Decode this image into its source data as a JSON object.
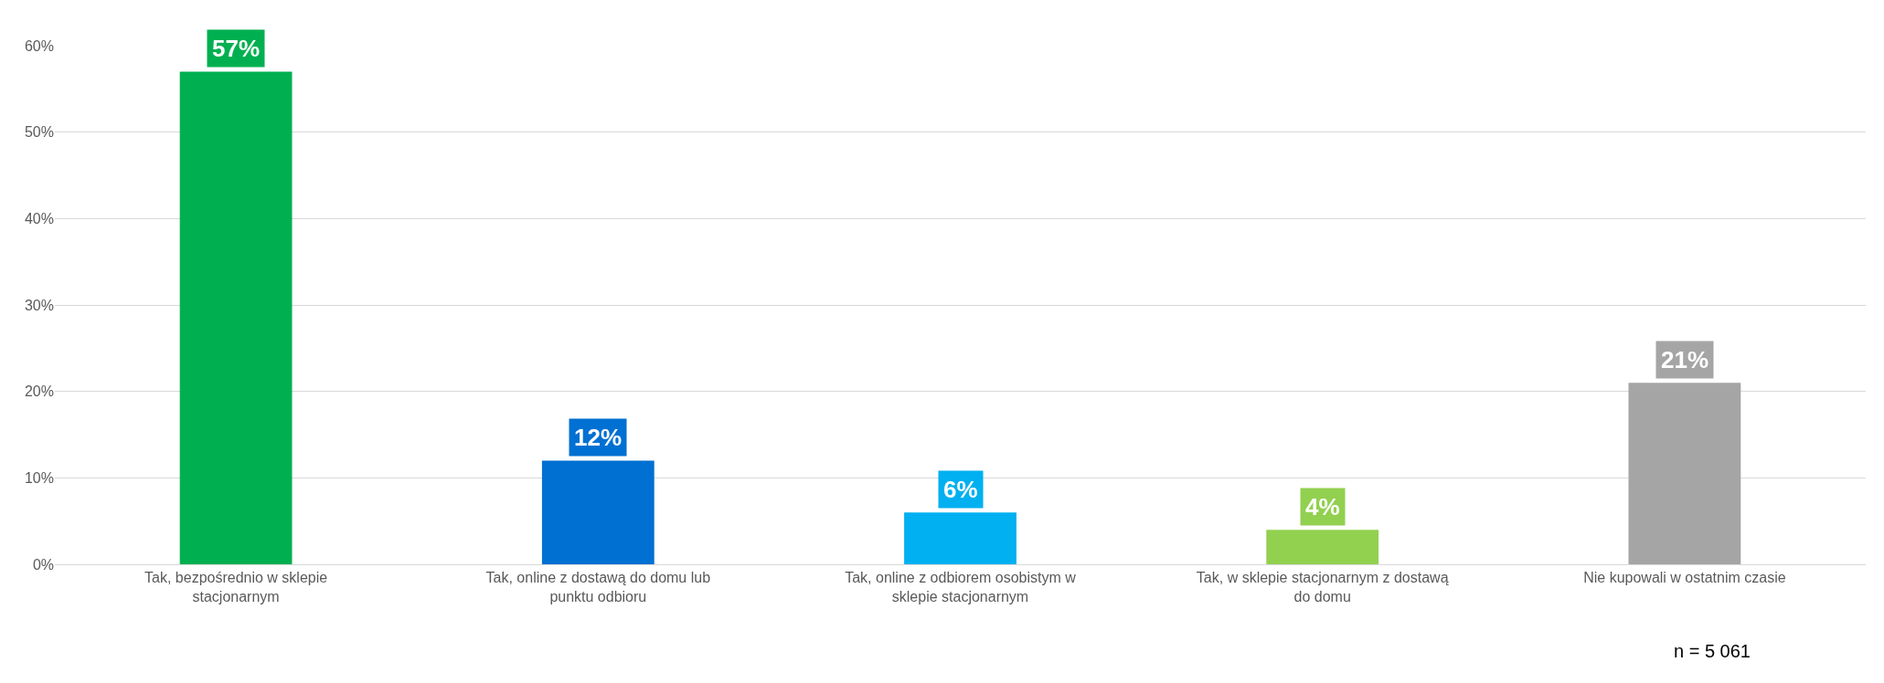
{
  "chart_data": {
    "type": "bar",
    "categories": [
      "Tak, bezpośrednio w sklepie stacjonarnym",
      "Tak, online z dostawą do domu lub punktu odbioru",
      "Tak, online z odbiorem osobistym w sklepie stacjonarnym",
      "Tak, w sklepie stacjonarnym z dostawą do domu",
      "Nie kupowali w ostatnim czasie"
    ],
    "values": [
      57,
      12,
      6,
      4,
      21
    ],
    "value_labels": [
      "57%",
      "12%",
      "6%",
      "4%",
      "21%"
    ],
    "colors": [
      "#00b050",
      "#0070d2",
      "#00b0f0",
      "#92d050",
      "#a5a5a5"
    ],
    "ylim": [
      0,
      60
    ],
    "yticks": [
      {
        "value": 0,
        "label": "0%"
      },
      {
        "value": 10,
        "label": "10%"
      },
      {
        "value": 20,
        "label": "20%"
      },
      {
        "value": 30,
        "label": "30%"
      },
      {
        "value": 40,
        "label": "40%"
      },
      {
        "value": 50,
        "label": "50%"
      },
      {
        "value": 60,
        "label": "60%"
      }
    ],
    "grid": "y",
    "legend": false,
    "annotations": [
      "n = 5 061"
    ]
  }
}
